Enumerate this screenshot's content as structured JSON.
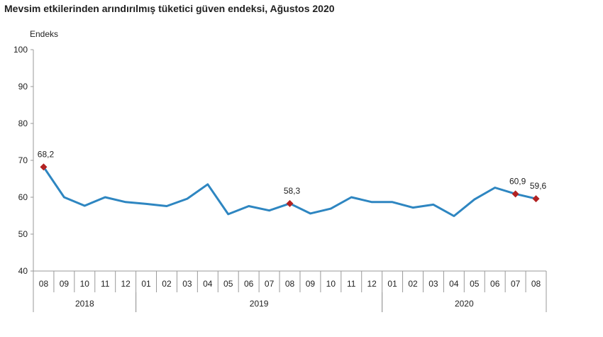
{
  "chart_data": {
    "type": "line",
    "title": "Mevsim etkilerinden arındırılmış tüketici güven endeksi, Ağustos 2020",
    "ylabel": "Endeks",
    "xlabel": "",
    "ylim": [
      40,
      100
    ],
    "yticks": [
      "40",
      "50",
      "60",
      "70",
      "80",
      "90",
      "100"
    ],
    "grid": false,
    "categories": [
      "08",
      "09",
      "10",
      "11",
      "12",
      "01",
      "02",
      "03",
      "04",
      "05",
      "06",
      "07",
      "08",
      "09",
      "10",
      "11",
      "12",
      "01",
      "02",
      "03",
      "04",
      "05",
      "06",
      "07",
      "08"
    ],
    "year_groups": [
      {
        "label": "2018",
        "start": 0,
        "end": 4
      },
      {
        "label": "2019",
        "start": 5,
        "end": 16
      },
      {
        "label": "2020",
        "start": 17,
        "end": 24
      }
    ],
    "series": [
      {
        "color": "#2E86C1",
        "values": [
          68.2,
          60.0,
          57.7,
          60.0,
          58.7,
          58.2,
          57.6,
          59.6,
          63.5,
          55.4,
          57.6,
          56.4,
          58.3,
          55.6,
          56.9,
          60.0,
          58.7,
          58.7,
          57.2,
          58.0,
          54.9,
          59.4,
          62.6,
          60.9,
          59.6
        ]
      }
    ],
    "marker_color": "#B22222",
    "annotations": [
      {
        "index": 0,
        "label": "68,2"
      },
      {
        "index": 12,
        "label": "58,3"
      },
      {
        "index": 23,
        "label": "60,9"
      },
      {
        "index": 24,
        "label": "59,6"
      }
    ]
  }
}
